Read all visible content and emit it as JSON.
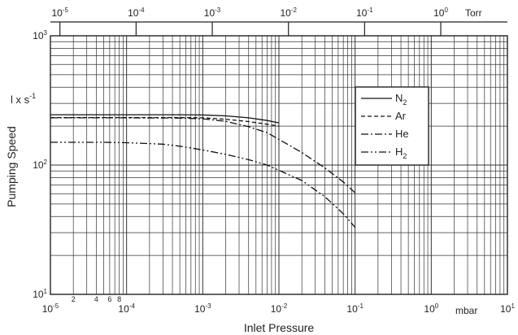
{
  "chart_data": {
    "type": "line",
    "xlabel": "Inlet Pressure",
    "ylabel": "Pumping Speed",
    "y_unit": "l x s",
    "y_unit_exp": "-1",
    "x_unit_bottom": "mbar",
    "x_unit_top": "Torr",
    "x_scale": "log",
    "y_scale": "log",
    "xlim": [
      1e-05,
      10
    ],
    "ylim": [
      10,
      1000
    ],
    "grid": true,
    "legend_position": "upper-right",
    "x_ticks_bottom": [
      {
        "value": 1e-05,
        "base": "10",
        "exp": "-5"
      },
      {
        "value": 0.0001,
        "base": "10",
        "exp": "-4"
      },
      {
        "value": 0.001,
        "base": "10",
        "exp": "-3"
      },
      {
        "value": 0.01,
        "base": "10",
        "exp": "-2"
      },
      {
        "value": 0.1,
        "base": "10",
        "exp": "-1"
      },
      {
        "value": 1,
        "base": "10",
        "exp": "0"
      },
      {
        "value": 10,
        "base": "10",
        "exp": "1"
      }
    ],
    "x_minor_labels_bottom": [
      {
        "value": 2e-05,
        "label": "2"
      },
      {
        "value": 4e-05,
        "label": "4"
      },
      {
        "value": 6e-05,
        "label": "6"
      },
      {
        "value": 8e-05,
        "label": "8"
      }
    ],
    "x_ticks_top": [
      {
        "value": 1e-05,
        "base": "10",
        "exp": "-5"
      },
      {
        "value": 0.0001,
        "base": "10",
        "exp": "-4"
      },
      {
        "value": 0.001,
        "base": "10",
        "exp": "-3"
      },
      {
        "value": 0.01,
        "base": "10",
        "exp": "-2"
      },
      {
        "value": 0.1,
        "base": "10",
        "exp": "-1"
      },
      {
        "value": 1,
        "base": "10",
        "exp": "0"
      }
    ],
    "torr_per_mbar": 1.333,
    "y_ticks": [
      {
        "value": 10,
        "base": "10",
        "exp": "1"
      },
      {
        "value": 100,
        "base": "10",
        "exp": "2"
      },
      {
        "value": 1000,
        "base": "10",
        "exp": "3"
      }
    ],
    "series": [
      {
        "name": "N",
        "name_sub": "2",
        "dash": "solid",
        "x": [
          1e-05,
          0.0001,
          0.0005,
          0.001,
          0.002,
          0.004,
          0.007,
          0.01
        ],
        "y": [
          245,
          245,
          245,
          244,
          240,
          232,
          221,
          212
        ]
      },
      {
        "name": "Ar",
        "name_sub": "",
        "dash": "dashed",
        "x": [
          1e-05,
          0.0001,
          0.0005,
          0.001,
          0.002,
          0.004,
          0.007,
          0.01
        ],
        "y": [
          233,
          233,
          233,
          232,
          226,
          217,
          207,
          200
        ]
      },
      {
        "name": "He",
        "name_sub": "",
        "dash": "dashdot",
        "x": [
          1e-05,
          0.0001,
          0.0005,
          0.001,
          0.002,
          0.004,
          0.007,
          0.01,
          0.02,
          0.04,
          0.07,
          0.1
        ],
        "y": [
          232,
          232,
          231,
          228,
          218,
          198,
          178,
          158,
          125,
          95,
          74,
          61
        ]
      },
      {
        "name": "H",
        "name_sub": "2",
        "dash": "dashdotdot",
        "x": [
          1e-05,
          5e-05,
          0.0001,
          0.0003,
          0.0005,
          0.001,
          0.002,
          0.004,
          0.007,
          0.01,
          0.02,
          0.04,
          0.07,
          0.1
        ],
        "y": [
          150,
          150,
          149,
          145,
          140,
          131,
          121,
          110,
          100,
          91,
          76,
          57,
          42,
          33
        ]
      }
    ]
  }
}
